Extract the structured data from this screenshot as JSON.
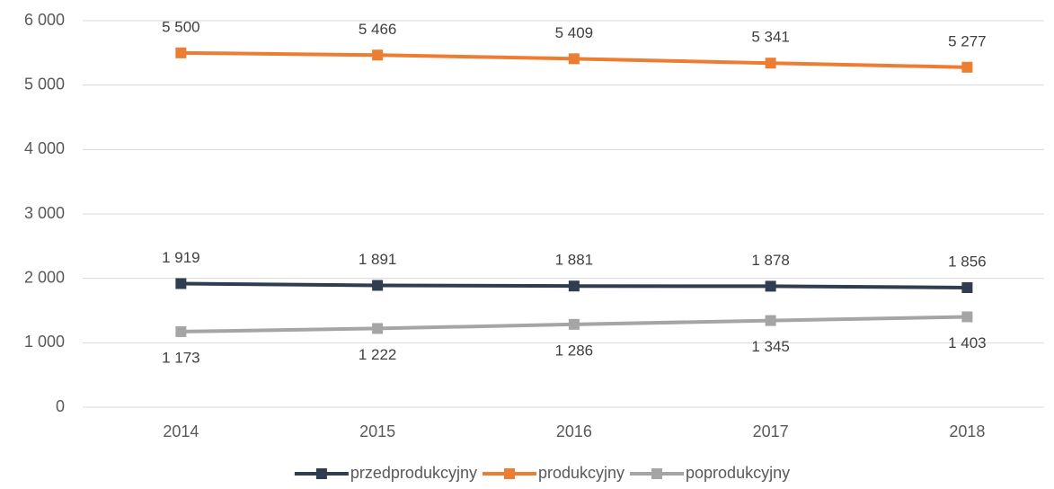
{
  "chart_data": {
    "type": "line",
    "categories": [
      "2014",
      "2015",
      "2016",
      "2017",
      "2018"
    ],
    "series": [
      {
        "name": "przedprodukcyjny",
        "color": "#2e3d4f",
        "values": [
          1919,
          1891,
          1881,
          1878,
          1856
        ],
        "value_labels": [
          "1 919",
          "1 891",
          "1 881",
          "1 878",
          "1 856"
        ]
      },
      {
        "name": "produkcyjny",
        "color": "#ed7d31",
        "values": [
          5500,
          5466,
          5409,
          5341,
          5277
        ],
        "value_labels": [
          "5 500",
          "5 466",
          "5 409",
          "5 341",
          "5 277"
        ]
      },
      {
        "name": "poprodukcyjny",
        "color": "#a5a5a5",
        "values": [
          1173,
          1222,
          1286,
          1345,
          1403
        ],
        "value_labels": [
          "1 173",
          "1 222",
          "1 286",
          "1 345",
          "1 403"
        ]
      }
    ],
    "ylim": [
      0,
      6000
    ],
    "yticks": [
      0,
      {
        "value": 1000,
        "label": "1 000"
      },
      {
        "value": 2000,
        "label": "2 000"
      },
      {
        "value": 3000,
        "label": "3 000"
      },
      {
        "value": 4000,
        "label": "4 000"
      },
      {
        "value": 5000,
        "label": "5 000"
      },
      {
        "value": 6000,
        "label": "6 000"
      }
    ],
    "grid": true,
    "legend": "bottom"
  }
}
